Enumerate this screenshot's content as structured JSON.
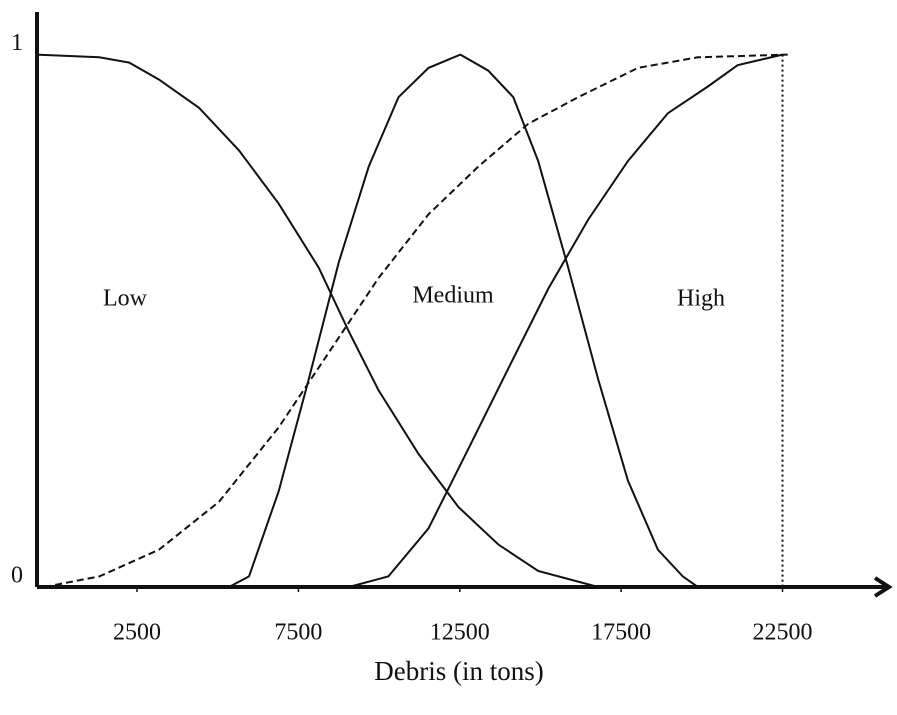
{
  "chart_data": {
    "type": "line",
    "x_label": "Debris (in tons)",
    "xlim": [
      -600,
      25800
    ],
    "ylim": [
      0,
      1.08
    ],
    "xticks": [
      2500,
      7500,
      12500,
      17500,
      22500
    ],
    "yticks": [
      0,
      1
    ],
    "vline": 22500,
    "grid": false,
    "series": [
      {
        "name": "Low",
        "color": "#111111",
        "dash": false,
        "x": [
          -620,
          1330,
          2260,
          3180,
          4420,
          5660,
          6890,
          8130,
          9060,
          9980,
          11220,
          12460,
          13690,
          14930,
          16790
        ],
        "values": [
          1,
          0.995,
          0.985,
          0.953,
          0.9,
          0.82,
          0.72,
          0.6,
          0.48,
          0.37,
          0.25,
          0.15,
          0.08,
          0.03,
          0
        ]
      },
      {
        "name": "Medium",
        "color": "#111111",
        "dash": false,
        "x": [
          5350,
          5970,
          6890,
          7820,
          8750,
          9680,
          10600,
          11530,
          12520,
          13380,
          14160,
          14930,
          15860,
          16790,
          17710,
          18640,
          19410,
          19880
        ],
        "values": [
          0,
          0.02,
          0.18,
          0.39,
          0.61,
          0.79,
          0.92,
          0.975,
          1,
          0.97,
          0.92,
          0.8,
          0.6,
          0.39,
          0.2,
          0.07,
          0.02,
          0
        ]
      },
      {
        "name": "High",
        "color": "#111111",
        "dash": false,
        "x": [
          9060,
          10290,
          11530,
          12770,
          14000,
          15240,
          16480,
          17710,
          18950,
          20190,
          21110,
          22500
        ],
        "values": [
          0,
          0.02,
          0.11,
          0.26,
          0.41,
          0.56,
          0.69,
          0.8,
          0.89,
          0.94,
          0.98,
          1
        ]
      },
      {
        "color": "#111111",
        "dash": true,
        "x": [
          -370,
          1330,
          3180,
          5040,
          6890,
          8440,
          9980,
          11530,
          13080,
          14620,
          16170,
          18020,
          19880,
          22660
        ],
        "values": [
          0,
          0.02,
          0.07,
          0.16,
          0.3,
          0.44,
          0.58,
          0.7,
          0.79,
          0.87,
          0.92,
          0.975,
          0.995,
          1
        ]
      }
    ]
  }
}
